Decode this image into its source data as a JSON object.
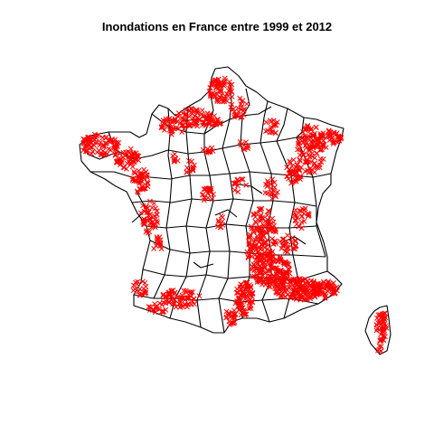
{
  "title": "Inondations en France entre 1999 et 2012",
  "colors": {
    "markers": "#ff0000",
    "borders": "#000000",
    "background": "#ffffff"
  },
  "marker_symbol": "x"
}
